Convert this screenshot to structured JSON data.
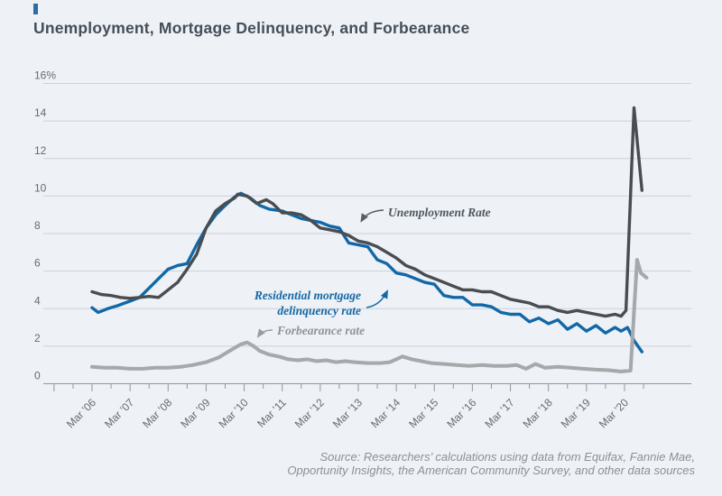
{
  "header": {
    "title": "Unemployment, Mortgage Delinquency, and Forbearance"
  },
  "accent_color": "#2e6da4",
  "background_color": "#eef1f5",
  "chart_data": {
    "type": "line",
    "title": "Unemployment, Mortgage Delinquency, and Forbearance",
    "xlabel": "",
    "ylabel": "",
    "grid": true,
    "legend_position": "inline-annotations",
    "y_axis": {
      "range": [
        0,
        16
      ],
      "ticks": [
        0,
        2,
        4,
        6,
        8,
        10,
        12,
        14,
        16
      ],
      "labels": [
        "0",
        "2",
        "4",
        "6",
        "8",
        "10",
        "12",
        "14",
        "16%"
      ]
    },
    "x_axis": {
      "range_years": [
        2005.17,
        2020.67
      ],
      "minor_tick_step_years": 0.5,
      "tick_years": [
        2006.17,
        2007.17,
        2008.17,
        2009.17,
        2010.17,
        2011.17,
        2012.17,
        2013.17,
        2014.17,
        2015.17,
        2016.17,
        2017.17,
        2018.17,
        2019.17,
        2020.17
      ],
      "tick_labels": [
        "Mar ’06",
        "Mar ’07",
        "Mar ’08",
        "Mar ’09",
        "Mar ’10",
        "Mar ’11",
        "Mar ’12",
        "Mar ’13",
        "Mar ’14",
        "Mar ’15",
        "Mar ’16",
        "Mar ’17",
        "Mar ’18",
        "Mar ’19",
        "Mar ’20"
      ]
    },
    "series": [
      {
        "name": "Residential mortgage delinquency rate",
        "color": "#1168a8",
        "width": 3.4,
        "points": [
          [
            2006.17,
            4.05
          ],
          [
            2006.33,
            3.8
          ],
          [
            2006.58,
            4.0
          ],
          [
            2006.83,
            4.15
          ],
          [
            2007.17,
            4.4
          ],
          [
            2007.42,
            4.6
          ],
          [
            2007.67,
            5.1
          ],
          [
            2007.92,
            5.6
          ],
          [
            2008.17,
            6.1
          ],
          [
            2008.42,
            6.3
          ],
          [
            2008.67,
            6.4
          ],
          [
            2008.92,
            7.4
          ],
          [
            2009.17,
            8.3
          ],
          [
            2009.42,
            9.0
          ],
          [
            2009.67,
            9.5
          ],
          [
            2009.92,
            9.95
          ],
          [
            2010.08,
            10.15
          ],
          [
            2010.33,
            9.9
          ],
          [
            2010.58,
            9.5
          ],
          [
            2010.83,
            9.3
          ],
          [
            2011.17,
            9.2
          ],
          [
            2011.42,
            9.0
          ],
          [
            2011.67,
            8.8
          ],
          [
            2011.92,
            8.7
          ],
          [
            2012.17,
            8.6
          ],
          [
            2012.42,
            8.4
          ],
          [
            2012.67,
            8.3
          ],
          [
            2012.92,
            7.5
          ],
          [
            2013.17,
            7.4
          ],
          [
            2013.42,
            7.3
          ],
          [
            2013.67,
            6.6
          ],
          [
            2013.92,
            6.4
          ],
          [
            2014.17,
            5.9
          ],
          [
            2014.42,
            5.8
          ],
          [
            2014.67,
            5.6
          ],
          [
            2014.92,
            5.4
          ],
          [
            2015.17,
            5.3
          ],
          [
            2015.42,
            4.7
          ],
          [
            2015.67,
            4.6
          ],
          [
            2015.92,
            4.6
          ],
          [
            2016.17,
            4.2
          ],
          [
            2016.42,
            4.2
          ],
          [
            2016.67,
            4.1
          ],
          [
            2016.92,
            3.8
          ],
          [
            2017.17,
            3.7
          ],
          [
            2017.42,
            3.7
          ],
          [
            2017.67,
            3.3
          ],
          [
            2017.92,
            3.5
          ],
          [
            2018.17,
            3.2
          ],
          [
            2018.42,
            3.4
          ],
          [
            2018.67,
            2.9
          ],
          [
            2018.92,
            3.2
          ],
          [
            2019.17,
            2.8
          ],
          [
            2019.42,
            3.1
          ],
          [
            2019.67,
            2.7
          ],
          [
            2019.92,
            3.0
          ],
          [
            2020.08,
            2.8
          ],
          [
            2020.25,
            3.0
          ],
          [
            2020.42,
            2.3
          ],
          [
            2020.63,
            1.7
          ]
        ]
      },
      {
        "name": "Forbearance rate",
        "color": "#a6a8aa",
        "width": 4,
        "points": [
          [
            2006.17,
            0.9
          ],
          [
            2006.5,
            0.85
          ],
          [
            2006.83,
            0.85
          ],
          [
            2007.17,
            0.8
          ],
          [
            2007.5,
            0.8
          ],
          [
            2007.83,
            0.85
          ],
          [
            2008.17,
            0.85
          ],
          [
            2008.5,
            0.9
          ],
          [
            2008.83,
            1.0
          ],
          [
            2009.17,
            1.15
          ],
          [
            2009.5,
            1.4
          ],
          [
            2009.83,
            1.8
          ],
          [
            2010.08,
            2.1
          ],
          [
            2010.25,
            2.2
          ],
          [
            2010.42,
            2.0
          ],
          [
            2010.58,
            1.75
          ],
          [
            2010.83,
            1.55
          ],
          [
            2011.08,
            1.45
          ],
          [
            2011.33,
            1.3
          ],
          [
            2011.58,
            1.25
          ],
          [
            2011.83,
            1.3
          ],
          [
            2012.08,
            1.2
          ],
          [
            2012.33,
            1.25
          ],
          [
            2012.58,
            1.15
          ],
          [
            2012.83,
            1.2
          ],
          [
            2013.08,
            1.15
          ],
          [
            2013.42,
            1.1
          ],
          [
            2013.75,
            1.1
          ],
          [
            2014.0,
            1.15
          ],
          [
            2014.33,
            1.45
          ],
          [
            2014.58,
            1.3
          ],
          [
            2014.83,
            1.2
          ],
          [
            2015.08,
            1.1
          ],
          [
            2015.42,
            1.05
          ],
          [
            2015.75,
            1.0
          ],
          [
            2016.08,
            0.95
          ],
          [
            2016.42,
            1.0
          ],
          [
            2016.75,
            0.95
          ],
          [
            2017.08,
            0.95
          ],
          [
            2017.33,
            1.0
          ],
          [
            2017.58,
            0.8
          ],
          [
            2017.83,
            1.05
          ],
          [
            2018.08,
            0.85
          ],
          [
            2018.42,
            0.9
          ],
          [
            2018.75,
            0.85
          ],
          [
            2019.08,
            0.8
          ],
          [
            2019.42,
            0.75
          ],
          [
            2019.75,
            0.72
          ],
          [
            2020.08,
            0.65
          ],
          [
            2020.33,
            0.7
          ],
          [
            2020.5,
            6.6
          ],
          [
            2020.6,
            5.9
          ],
          [
            2020.75,
            5.65
          ]
        ]
      },
      {
        "name": "Unemployment Rate",
        "color": "#484d52",
        "width": 3.4,
        "points": [
          [
            2006.17,
            4.9
          ],
          [
            2006.42,
            4.75
          ],
          [
            2006.67,
            4.7
          ],
          [
            2006.92,
            4.6
          ],
          [
            2007.17,
            4.55
          ],
          [
            2007.42,
            4.6
          ],
          [
            2007.67,
            4.65
          ],
          [
            2007.92,
            4.6
          ],
          [
            2008.17,
            5.0
          ],
          [
            2008.42,
            5.4
          ],
          [
            2008.67,
            6.1
          ],
          [
            2008.92,
            6.9
          ],
          [
            2009.17,
            8.3
          ],
          [
            2009.42,
            9.2
          ],
          [
            2009.67,
            9.6
          ],
          [
            2009.92,
            9.9
          ],
          [
            2010.0,
            10.1
          ],
          [
            2010.25,
            10.0
          ],
          [
            2010.5,
            9.6
          ],
          [
            2010.75,
            9.8
          ],
          [
            2010.92,
            9.6
          ],
          [
            2011.17,
            9.1
          ],
          [
            2011.42,
            9.1
          ],
          [
            2011.67,
            9.0
          ],
          [
            2011.92,
            8.7
          ],
          [
            2012.17,
            8.3
          ],
          [
            2012.42,
            8.2
          ],
          [
            2012.67,
            8.1
          ],
          [
            2012.92,
            7.9
          ],
          [
            2013.17,
            7.6
          ],
          [
            2013.42,
            7.5
          ],
          [
            2013.67,
            7.3
          ],
          [
            2013.92,
            7.0
          ],
          [
            2014.17,
            6.7
          ],
          [
            2014.42,
            6.3
          ],
          [
            2014.67,
            6.1
          ],
          [
            2014.92,
            5.8
          ],
          [
            2015.17,
            5.6
          ],
          [
            2015.42,
            5.4
          ],
          [
            2015.67,
            5.2
          ],
          [
            2015.92,
            5.0
          ],
          [
            2016.17,
            5.0
          ],
          [
            2016.42,
            4.9
          ],
          [
            2016.67,
            4.9
          ],
          [
            2016.92,
            4.7
          ],
          [
            2017.17,
            4.5
          ],
          [
            2017.42,
            4.4
          ],
          [
            2017.67,
            4.3
          ],
          [
            2017.92,
            4.1
          ],
          [
            2018.17,
            4.1
          ],
          [
            2018.42,
            3.9
          ],
          [
            2018.67,
            3.8
          ],
          [
            2018.92,
            3.9
          ],
          [
            2019.17,
            3.8
          ],
          [
            2019.42,
            3.7
          ],
          [
            2019.67,
            3.6
          ],
          [
            2019.92,
            3.7
          ],
          [
            2020.08,
            3.6
          ],
          [
            2020.21,
            3.9
          ],
          [
            2020.42,
            14.7
          ],
          [
            2020.63,
            10.3
          ]
        ]
      }
    ],
    "annotations": [
      {
        "label": "Unemployment Rate",
        "series": "unemployment",
        "color": "#4d5761"
      },
      {
        "label_lines": [
          "Residential mortgage",
          "delinquency rate"
        ],
        "series": "delinquency",
        "color": "#1668a5"
      },
      {
        "label": "Forbearance rate",
        "series": "forbearance",
        "color": "#8f9398"
      }
    ]
  },
  "source": {
    "line1": "Source: Researchers’ calculations using data from Equifax, Fannie Mae,",
    "line2": "Opportunity Insights, the American Community Survey, and other data sources"
  }
}
